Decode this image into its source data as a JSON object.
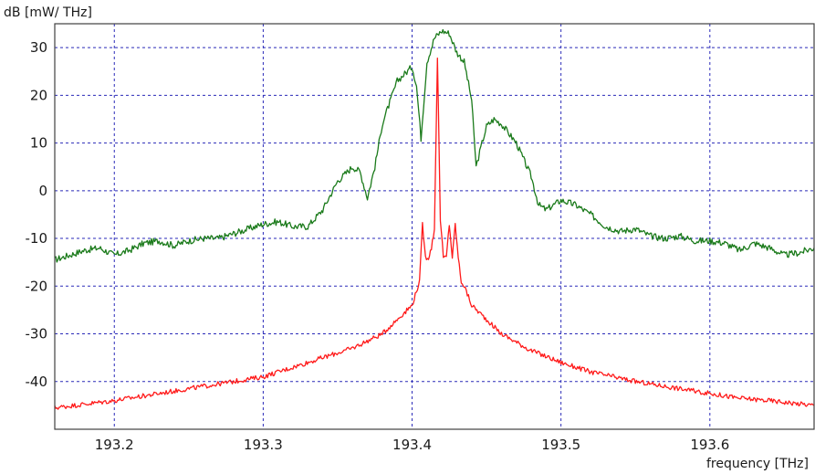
{
  "chart_data": {
    "type": "line",
    "title": "",
    "ylabel": "dB [mW/ THz]",
    "xlabel": "frequency [THz]",
    "xlim": [
      193.16,
      193.67
    ],
    "ylim": [
      -50,
      35
    ],
    "xticks": [
      193.2,
      193.3,
      193.4,
      193.5,
      193.6
    ],
    "xtick_labels": [
      "193.2",
      "193.3",
      "193.4",
      "193.5",
      "193.6"
    ],
    "yticks": [
      30,
      20,
      10,
      0,
      -10,
      -20,
      -30,
      -40
    ],
    "ytick_labels": [
      "30",
      "20",
      "10",
      "0",
      "-10",
      "-20",
      "-30",
      "-40"
    ],
    "grid": true,
    "legend": "none",
    "series": [
      {
        "color": "#1a7a1a",
        "x": [
          193.16,
          193.17,
          193.18,
          193.19,
          193.2,
          193.21,
          193.22,
          193.23,
          193.24,
          193.25,
          193.26,
          193.27,
          193.28,
          193.29,
          193.3,
          193.31,
          193.32,
          193.33,
          193.34,
          193.35,
          193.36,
          193.365,
          193.37,
          193.375,
          193.38,
          193.39,
          193.4,
          193.403,
          193.406,
          193.41,
          193.415,
          193.42,
          193.425,
          193.43,
          193.435,
          193.44,
          193.443,
          193.447,
          193.45,
          193.455,
          193.46,
          193.47,
          193.48,
          193.485,
          193.49,
          193.5,
          193.51,
          193.52,
          193.53,
          193.54,
          193.55,
          193.56,
          193.57,
          193.58,
          193.59,
          193.6,
          193.61,
          193.62,
          193.63,
          193.64,
          193.65,
          193.66,
          193.67
        ],
        "y": [
          -14.5,
          -13.5,
          -12.5,
          -12,
          -13.5,
          -12.5,
          -11,
          -10.5,
          -11.5,
          -10.5,
          -10,
          -10,
          -9,
          -8,
          -7,
          -6.5,
          -7.5,
          -7.5,
          -4,
          2,
          5,
          4,
          -1.5,
          5,
          14,
          23,
          26,
          22,
          11,
          27,
          32,
          33.5,
          33,
          29,
          27,
          19,
          5,
          10,
          13.5,
          15,
          14,
          10,
          3,
          -3,
          -4,
          -2,
          -3,
          -5,
          -7.5,
          -8.5,
          -8,
          -9.5,
          -10,
          -9.5,
          -10.5,
          -10.5,
          -11,
          -12.5,
          -11,
          -12,
          -13.5,
          -13,
          -12
        ]
      },
      {
        "color": "#ff1a1a",
        "x": [
          193.16,
          193.2,
          193.24,
          193.28,
          193.3,
          193.32,
          193.34,
          193.36,
          193.38,
          193.39,
          193.4,
          193.405,
          193.407,
          193.409,
          193.411,
          193.413,
          193.415,
          193.417,
          193.419,
          193.421,
          193.423,
          193.425,
          193.427,
          193.429,
          193.431,
          193.433,
          193.435,
          193.44,
          193.45,
          193.46,
          193.48,
          193.5,
          193.52,
          193.55,
          193.58,
          193.6,
          193.62,
          193.64,
          193.67
        ],
        "y": [
          -45.5,
          -44,
          -42,
          -40,
          -39,
          -37,
          -35,
          -33,
          -30,
          -27,
          -24,
          -19,
          -7,
          -14,
          -14,
          -12,
          -8,
          28,
          -6,
          -14,
          -14,
          -7,
          -14,
          -7,
          -14,
          -19,
          -20,
          -24,
          -27,
          -30,
          -33.5,
          -36,
          -38,
          -40,
          -41.5,
          -42.5,
          -43.5,
          -44,
          -45
        ]
      }
    ]
  }
}
